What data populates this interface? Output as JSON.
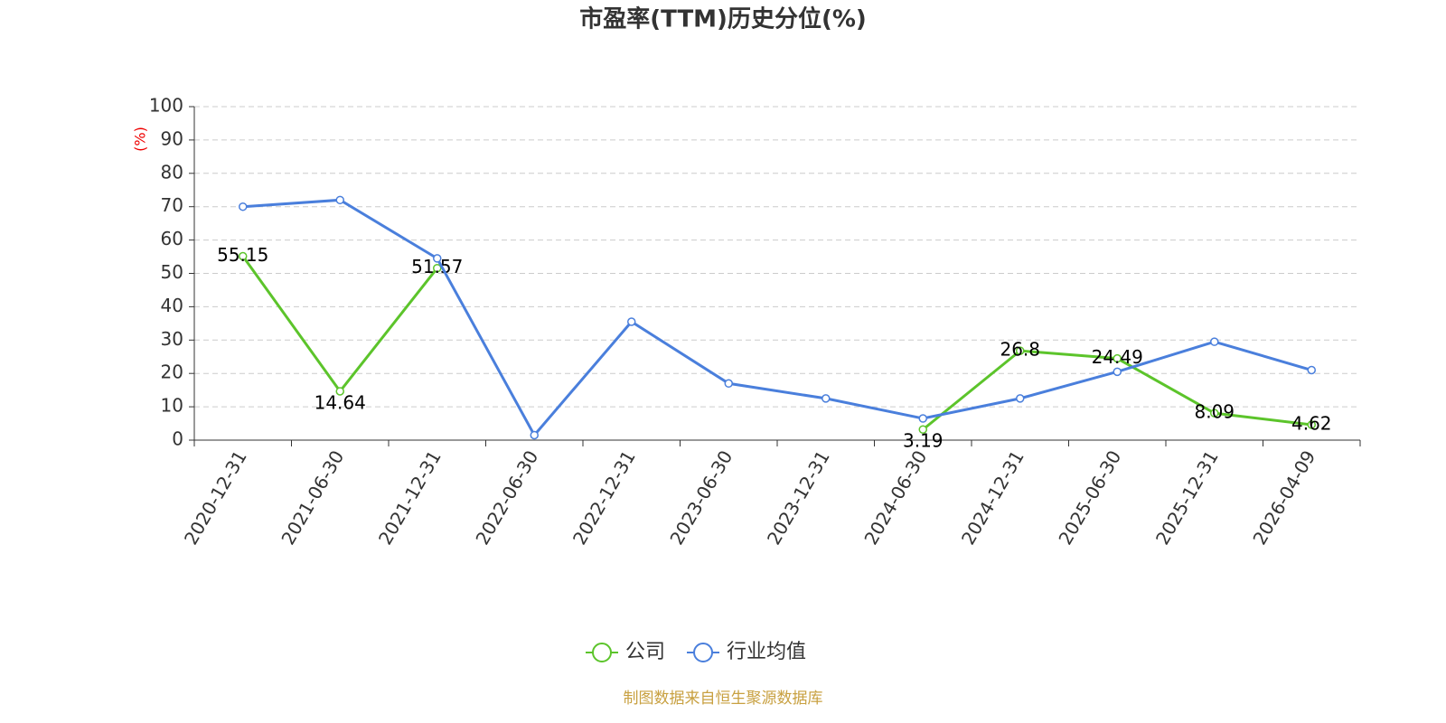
{
  "chart_data": {
    "type": "line",
    "title": "市盈率(TTM)历史分位(%)",
    "y_label": "(%)",
    "source": "制图数据来自恒生聚源数据库",
    "categories": [
      "2020-12-31",
      "2021-06-30",
      "2021-12-31",
      "2022-06-30",
      "2022-12-31",
      "2023-06-30",
      "2023-12-31",
      "2024-06-30",
      "2024-12-31",
      "2025-06-30",
      "2025-12-31",
      "2026-04-09"
    ],
    "series": [
      {
        "name": "公司",
        "color": "#5cc42b",
        "labels": true,
        "values": [
          55.15,
          14.64,
          51.57,
          null,
          null,
          null,
          null,
          3.19,
          26.8,
          24.49,
          8.09,
          4.62
        ]
      },
      {
        "name": "行业均值",
        "color": "#4a7fdc",
        "labels": false,
        "values": [
          70,
          72,
          54.5,
          1.5,
          35.5,
          17,
          12.5,
          6.5,
          12.5,
          20.5,
          29.5,
          21
        ]
      }
    ],
    "ylim": [
      0,
      100
    ],
    "yticks": [
      0,
      10,
      20,
      30,
      40,
      50,
      60,
      70,
      80,
      90,
      100
    ],
    "grid": true
  }
}
